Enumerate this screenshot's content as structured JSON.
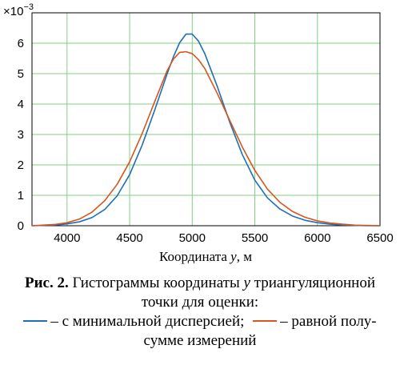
{
  "chart_data": {
    "type": "line",
    "xlabel_main": "Координата ",
    "xlabel_var": "y",
    "xlabel_unit": ", м",
    "xlim": [
      3720,
      6500
    ],
    "ylim": [
      0,
      0.007
    ],
    "y_multiplier_base": "×10",
    "y_multiplier_exp": "−3",
    "x_ticks": [
      "4000",
      "4500",
      "5000",
      "5500",
      "6000",
      "6500"
    ],
    "y_ticks": [
      "0",
      "1",
      "2",
      "3",
      "4",
      "5",
      "6"
    ],
    "grid": true,
    "series": [
      {
        "key": "minvar",
        "color": "#1f6fb5",
        "x": [
          3720,
          3900,
          4000,
          4100,
          4200,
          4300,
          4400,
          4500,
          4600,
          4700,
          4800,
          4850,
          4900,
          4950,
          5000,
          5050,
          5100,
          5200,
          5300,
          5400,
          5500,
          5600,
          5700,
          5800,
          5900,
          6000,
          6100,
          6200,
          6300,
          6400,
          6500
        ],
        "y": [
          0.0,
          2e-05,
          6e-05,
          0.00013,
          0.00027,
          0.00053,
          0.00098,
          0.00168,
          0.00265,
          0.0038,
          0.005,
          0.00556,
          0.00602,
          0.0063,
          0.0063,
          0.00607,
          0.00566,
          0.00458,
          0.0034,
          0.00234,
          0.0015,
          0.00092,
          0.00055,
          0.00032,
          0.00018,
          0.0001,
          5e-05,
          2e-05,
          1e-05,
          0.0,
          0.0
        ]
      },
      {
        "key": "halfsum",
        "color": "#d9541e",
        "x": [
          3720,
          3900,
          4000,
          4100,
          4200,
          4300,
          4400,
          4500,
          4600,
          4700,
          4800,
          4850,
          4900,
          4950,
          5000,
          5050,
          5100,
          5200,
          5300,
          5400,
          5500,
          5600,
          5700,
          5800,
          5900,
          6000,
          6100,
          6200,
          6300,
          6400,
          6500
        ],
        "y": [
          0.0,
          4e-05,
          0.0001,
          0.00022,
          0.00045,
          0.00082,
          0.00136,
          0.0021,
          0.00303,
          0.00408,
          0.0051,
          0.00548,
          0.0057,
          0.00572,
          0.00566,
          0.00546,
          0.00517,
          0.00435,
          0.00346,
          0.00259,
          0.00182,
          0.00121,
          0.00077,
          0.00047,
          0.00028,
          0.00016,
          9e-05,
          5e-05,
          2e-05,
          1e-05,
          0.0
        ]
      }
    ]
  },
  "caption": {
    "fig_label": "Рис. 2.",
    "line1_rest": " Гистограммы координаты ",
    "line1_var": "y",
    "line1_end": " триангуляционной",
    "line2": "точки для оценки:",
    "legend_a": "– с минимальной дисперсией;",
    "legend_b": "– равной полу-",
    "line4": "сумме измерений"
  }
}
